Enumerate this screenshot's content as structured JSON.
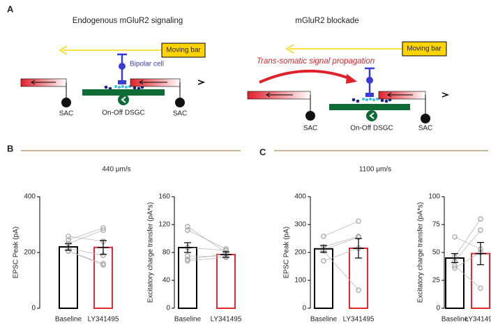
{
  "diagram": {
    "panel_label": "A",
    "left": {
      "title": "Endogenous mGluR2 signaling",
      "moving_bar": "Moving bar",
      "bipolar": "Bipolar cell",
      "sac_left": "SAC",
      "sac_right": "SAC",
      "dsgc": "On-Off DSGC"
    },
    "right": {
      "title": "mGluR2 blockade",
      "moving_bar": "Moving bar",
      "propagation": "Trans-somatic signal propagation",
      "sac_left": "SAC",
      "sac_right": "SAC",
      "dsgc": "On-Off DSGC"
    }
  },
  "panels": [
    {
      "label": "B",
      "speed": "440 μm/s"
    },
    {
      "label": "C",
      "speed": "1100 μm/s"
    }
  ],
  "chart_data": [
    {
      "type": "bar",
      "ylabel": "EPSC Peak (pA)",
      "categories": [
        "Baseline",
        "LY341495"
      ],
      "values": [
        220,
        218
      ],
      "errors": [
        12,
        25
      ],
      "colors": [
        "#000000",
        "#e0282e"
      ],
      "point_color": "#aaaaaa",
      "points": [
        [
          258,
          240
        ],
        [
          245,
          288
        ],
        [
          232,
          280
        ],
        [
          215,
          190
        ],
        [
          205,
          160
        ],
        [
          205,
          155
        ]
      ],
      "ylim": [
        0,
        400
      ],
      "yticks": [
        0,
        200,
        400
      ]
    },
    {
      "type": "bar",
      "ylabel": "Excitatory charge transfer (pA*s)",
      "categories": [
        "Baseline",
        "LY341495"
      ],
      "values": [
        87,
        77
      ],
      "errors": [
        7,
        4
      ],
      "colors": [
        "#000000",
        "#e0282e"
      ],
      "point_color": "#aaaaaa",
      "points": [
        [
          117,
          80
        ],
        [
          112,
          85
        ],
        [
          87,
          83
        ],
        [
          75,
          74
        ],
        [
          70,
          78
        ],
        [
          68,
          73
        ]
      ],
      "ylim": [
        0,
        160
      ],
      "yticks": [
        0,
        40,
        80,
        120,
        160
      ]
    },
    {
      "type": "bar",
      "ylabel": "EPSC Peak (pA)",
      "categories": [
        "Baseline",
        "LY341495"
      ],
      "values": [
        213,
        215
      ],
      "errors": [
        12,
        35
      ],
      "colors": [
        "#000000",
        "#e0282e"
      ],
      "point_color": "#aaaaaa",
      "points": [
        [
          258,
          312
        ],
        [
          220,
          258
        ],
        [
          210,
          255
        ],
        [
          205,
          65
        ],
        [
          170,
          215
        ]
      ],
      "ylim": [
        0,
        400
      ],
      "yticks": [
        0,
        100,
        200,
        300,
        400
      ]
    },
    {
      "type": "bar",
      "ylabel": "Excitatory charge transfer (pA*s)",
      "categories": [
        "Baseline",
        "LY341495"
      ],
      "values": [
        45,
        49
      ],
      "errors": [
        4,
        10
      ],
      "colors": [
        "#000000",
        "#e0282e"
      ],
      "point_color": "#aaaaaa",
      "points": [
        [
          64,
          53
        ],
        [
          46,
          80
        ],
        [
          42,
          70
        ],
        [
          38,
          18
        ],
        [
          36,
          50
        ]
      ],
      "ylim": [
        0,
        100
      ],
      "yticks": [
        0,
        25,
        50,
        75,
        100
      ]
    }
  ]
}
